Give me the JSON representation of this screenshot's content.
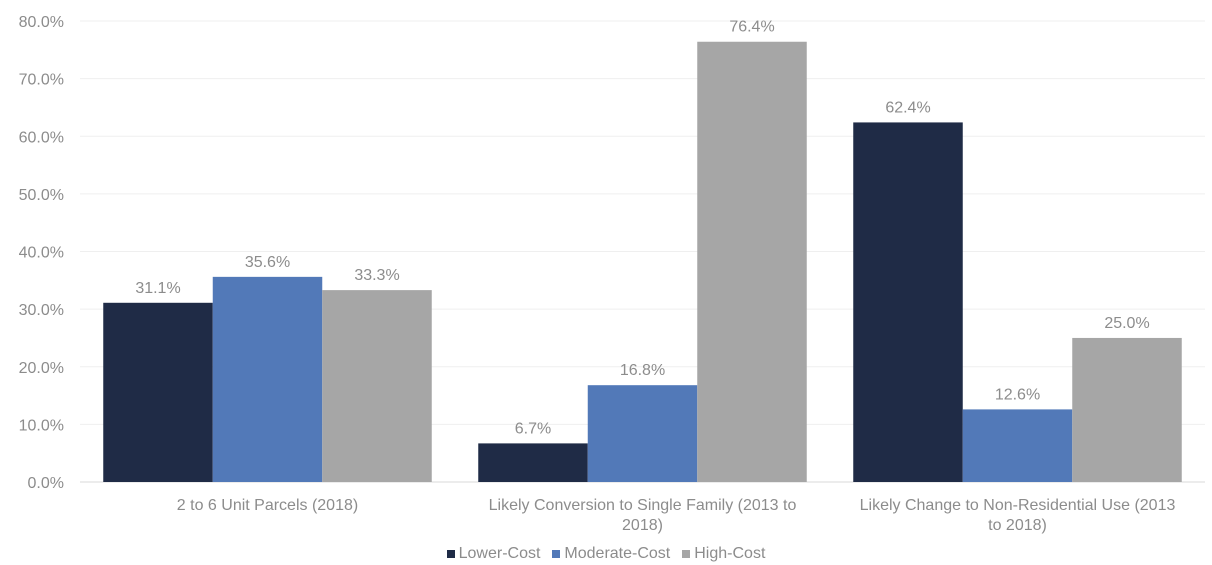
{
  "chart_data": {
    "type": "bar",
    "categories": [
      "2 to 6 Unit Parcels (2018)",
      "Likely Conversion to Single Family (2013 to 2018)",
      "Likely Change to Non-Residential Use (2013 to 2018)"
    ],
    "category_lines": [
      [
        "2 to 6 Unit Parcels (2018)"
      ],
      [
        "Likely Conversion to Single Family (2013 to",
        "2018)"
      ],
      [
        "Likely Change to Non-Residential Use (2013",
        "to 2018)"
      ]
    ],
    "series": [
      {
        "name": "Lower-Cost",
        "color": "#1f2b46",
        "values": [
          31.1,
          6.7,
          62.4
        ],
        "labels": [
          "31.1%",
          "6.7%",
          "62.4%"
        ]
      },
      {
        "name": "Moderate-Cost",
        "color": "#5279b8",
        "values": [
          35.6,
          16.8,
          12.6
        ],
        "labels": [
          "35.6%",
          "16.8%",
          "12.6%"
        ]
      },
      {
        "name": "High-Cost",
        "color": "#a6a6a6",
        "values": [
          33.3,
          76.4,
          25.0
        ],
        "labels": [
          "33.3%",
          "76.4%",
          "25.0%"
        ]
      }
    ],
    "yticks": [
      "0.0%",
      "10.0%",
      "20.0%",
      "30.0%",
      "40.0%",
      "50.0%",
      "60.0%",
      "70.0%",
      "80.0%"
    ],
    "ylim": [
      0,
      80
    ],
    "grid": true,
    "legend_position": "bottom",
    "title": "",
    "xlabel": "",
    "ylabel": ""
  }
}
